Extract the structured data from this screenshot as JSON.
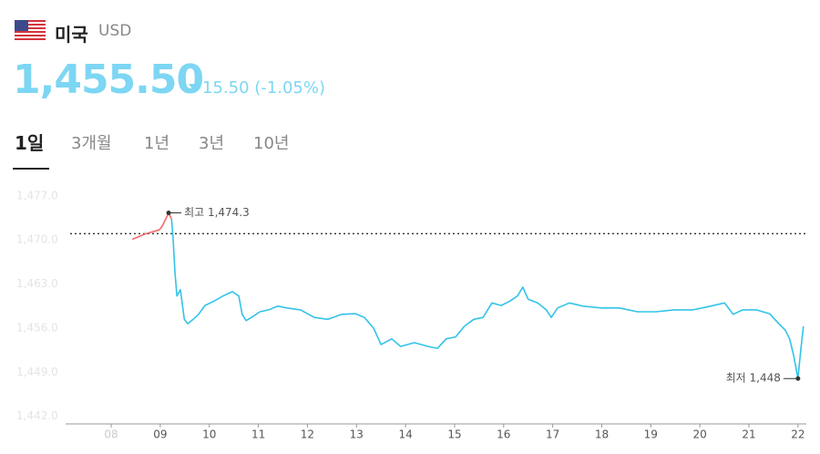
{
  "header": {
    "country": "미국",
    "currency": "USD",
    "price": "1,455.50",
    "change": "15.50 (-1.05%)"
  },
  "tabs": [
    "1일",
    "3개월",
    "1년",
    "3년",
    "10년"
  ],
  "selected_tab": 0,
  "chart_data": {
    "type": "line",
    "xlim": [
      7.07,
      22.17
    ],
    "xticks": [
      {
        "value": 8,
        "label": "08"
      },
      {
        "value": 9,
        "label": "09"
      },
      10,
      11,
      12,
      13,
      14,
      15,
      16,
      17,
      18,
      19,
      20,
      21,
      22
    ],
    "ylim": [
      1440.8,
      1477.7
    ],
    "yticks": [
      {
        "value": 1477,
        "label": "1,477.0"
      },
      {
        "value": 1470,
        "label": "1,470.0"
      },
      {
        "value": 1463,
        "label": "1,463.0"
      },
      {
        "value": 1456,
        "label": "1,456.0"
      },
      {
        "value": 1449,
        "label": "1,449.0"
      },
      {
        "value": 1442,
        "label": "1,442.0"
      }
    ],
    "reference_line": 1471.0,
    "series": [
      {
        "color": "#f26b6b",
        "x": [
          8.43,
          8.71,
          8.98,
          9.04,
          9.11,
          9.17,
          9.23
        ],
        "values": [
          1470.1,
          1471.0,
          1471.6,
          1472.2,
          1473.3,
          1474.3,
          1473.3
        ]
      },
      {
        "color": "#33c3e8",
        "x": [
          9.23,
          9.26,
          9.3,
          9.34,
          9.41,
          9.49,
          9.56,
          9.67,
          9.78,
          9.91,
          10.1,
          10.28,
          10.47,
          10.6,
          10.67,
          10.75,
          10.86,
          11.03,
          11.21,
          11.4,
          11.58,
          11.86,
          12.14,
          12.42,
          12.7,
          12.98,
          13.16,
          13.35,
          13.5,
          13.72,
          13.9,
          14.18,
          14.46,
          14.65,
          14.83,
          15.02,
          15.2,
          15.39,
          15.58,
          15.76,
          15.95,
          16.13,
          16.28,
          16.39,
          16.5,
          16.69,
          16.87,
          16.97,
          17.1,
          17.34,
          17.62,
          17.99,
          18.36,
          18.73,
          19.1,
          19.47,
          19.85,
          20.22,
          20.5,
          20.68,
          20.87,
          21.15,
          21.42,
          21.61,
          21.74,
          21.83,
          21.91,
          22.0,
          22.06,
          22.11
        ],
        "values": [
          1473.3,
          1470.4,
          1464.7,
          1461.1,
          1462.1,
          1457.4,
          1456.7,
          1457.4,
          1458.2,
          1459.6,
          1460.3,
          1461.1,
          1461.8,
          1461.1,
          1458.2,
          1457.2,
          1457.7,
          1458.6,
          1458.9,
          1459.5,
          1459.2,
          1458.9,
          1457.7,
          1457.4,
          1458.2,
          1458.3,
          1457.7,
          1456.0,
          1453.4,
          1454.3,
          1453.1,
          1453.7,
          1453.1,
          1452.8,
          1454.3,
          1454.6,
          1456.3,
          1457.4,
          1457.7,
          1460.0,
          1459.6,
          1460.3,
          1461.1,
          1462.5,
          1460.6,
          1460.0,
          1458.9,
          1457.7,
          1459.2,
          1460.0,
          1459.5,
          1459.2,
          1459.2,
          1458.6,
          1458.6,
          1458.9,
          1458.9,
          1459.5,
          1460.0,
          1458.2,
          1458.9,
          1458.9,
          1458.3,
          1456.7,
          1455.7,
          1454.3,
          1451.7,
          1448.0,
          1452.8,
          1456.3
        ]
      }
    ],
    "annotations": [
      {
        "label": "최고 1,474.3",
        "x": 9.17,
        "value": 1474.3
      },
      {
        "label": "최저 1,448",
        "x": 22.0,
        "value": 1448
      }
    ]
  }
}
